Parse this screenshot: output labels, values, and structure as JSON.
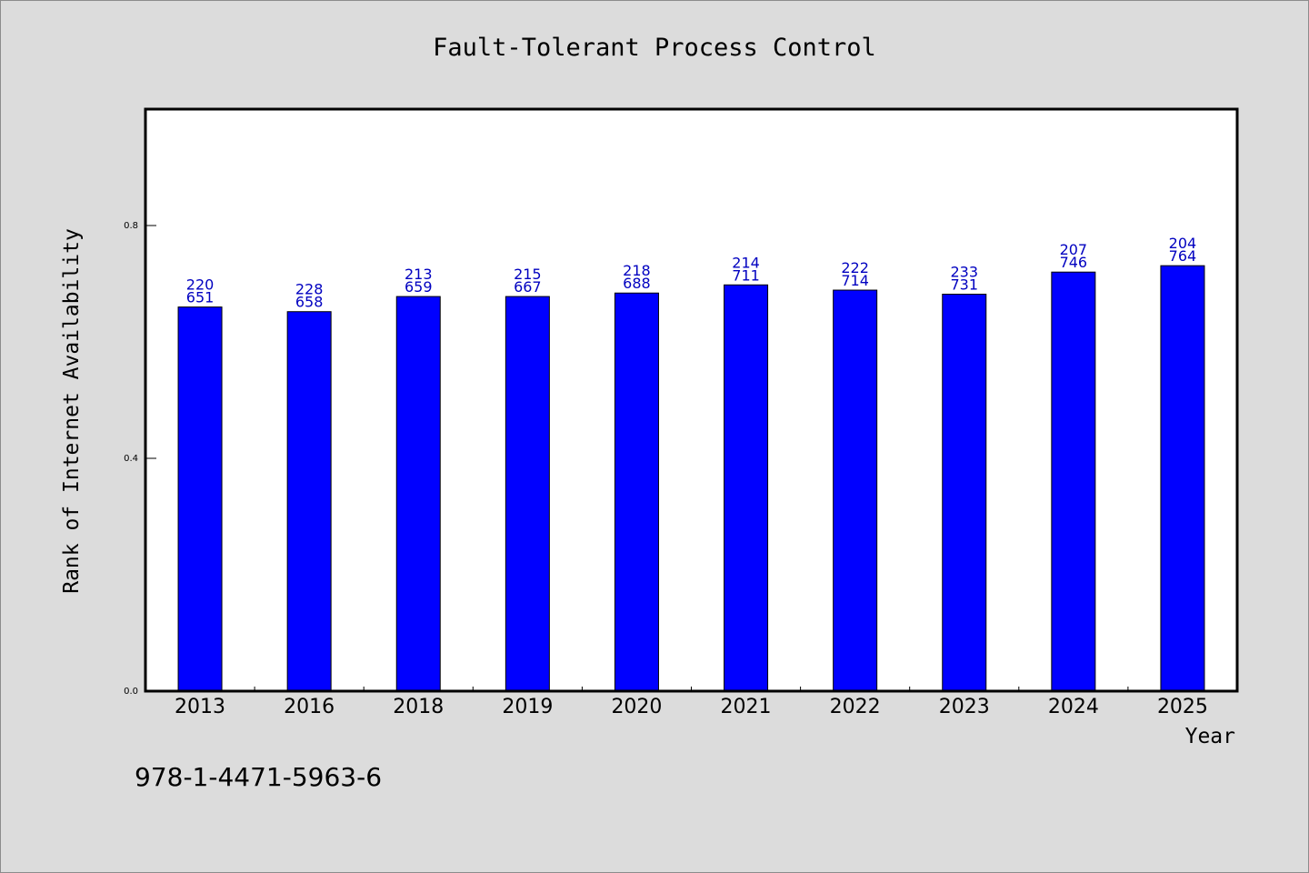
{
  "chart_data": {
    "type": "bar",
    "title": "Fault-Tolerant Process Control",
    "xlabel": "Year",
    "ylabel": "Rank of Internet Availability",
    "categories": [
      "2013",
      "2016",
      "2018",
      "2019",
      "2020",
      "2021",
      "2022",
      "2023",
      "2024",
      "2025"
    ],
    "series": [
      {
        "values": [
          0.66,
          0.652,
          0.678,
          0.678,
          0.684,
          0.698,
          0.689,
          0.682,
          0.72,
          0.731
        ],
        "color": "#0000ff"
      }
    ],
    "bar_labels_top": [
      "220",
      "228",
      "213",
      "215",
      "218",
      "214",
      "222",
      "233",
      "207",
      "204"
    ],
    "bar_labels_bottom": [
      "651",
      "658",
      "659",
      "667",
      "688",
      "711",
      "714",
      "731",
      "746",
      "764"
    ],
    "yticks": [
      "0.0",
      "0.4",
      "0.8"
    ],
    "ylim": [
      0,
      1.0
    ],
    "grid": false,
    "legend": "none",
    "colors": {
      "background": "#dcdcdc",
      "plot_background": "#ffffff",
      "bar": "#0000ff",
      "label": "#0000c0"
    }
  },
  "footer": {
    "isbn": "978-1-4471-5963-6"
  }
}
